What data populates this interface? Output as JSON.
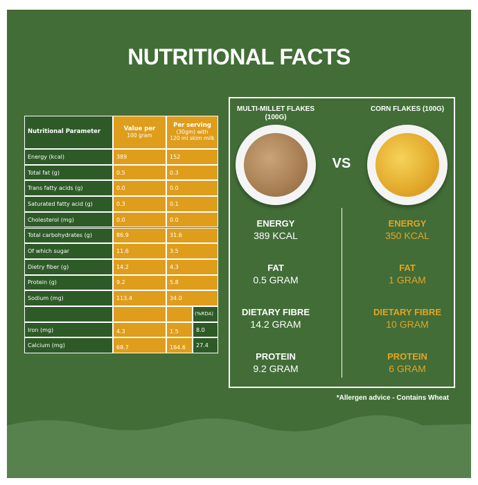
{
  "title": "NUTRITIONAL FACTS",
  "table": {
    "headers": [
      {
        "title": "Nutritional Parameter"
      },
      {
        "title": "Value per",
        "sub": [
          "100 gram"
        ]
      },
      {
        "title": "Per serving",
        "sub": [
          "(30gm) with",
          "120 ml skim milk"
        ]
      }
    ],
    "rows": [
      [
        "Energy (kcal)",
        "389",
        "152"
      ],
      [
        "Total fat (g)",
        "0.5",
        "0.3"
      ],
      [
        "Trans fatty acids (g)",
        "0.0",
        "0.0"
      ],
      [
        "Saturated fatty acid (g)",
        "0.3",
        "0.1"
      ],
      [
        "Cholesterol (mg)",
        "0.0",
        "0.0"
      ],
      [
        "Total carbohydrates (g)",
        "86.9",
        "31.6"
      ],
      [
        "Of which sugar",
        "11.6",
        "3.5"
      ],
      [
        "Dietry fiber (g)",
        "14.2",
        "4.3"
      ],
      [
        "Protein (g)",
        "9.2",
        "5.8"
      ],
      [
        "Sodium (mg)",
        "113.4",
        "34.0"
      ]
    ],
    "rda_label": "(%RDA)",
    "rda_rows": [
      [
        "Iron (mg)",
        "4.3",
        "1.5",
        "8.0"
      ],
      [
        "Calcium (mg)",
        "68.7",
        "164.6",
        "27.4"
      ]
    ]
  },
  "comparison": {
    "vs": "VS",
    "products": [
      {
        "name": "MULTI-MILLET FLAKES (100G)",
        "stats": [
          {
            "label": "ENERGY",
            "value": "389 KCAL"
          },
          {
            "label": "FAT",
            "value": "0.5 GRAM"
          },
          {
            "label": "DIETARY FIBRE",
            "value": "14.2 GRAM"
          },
          {
            "label": "PROTEIN",
            "value": "9.2 GRAM"
          }
        ]
      },
      {
        "name": "CORN FLAKES (100G)",
        "stats": [
          {
            "label": "ENERGY",
            "value": "350 KCAL"
          },
          {
            "label": "FAT",
            "value": "1 GRAM"
          },
          {
            "label": "DIETARY FIBRE",
            "value": "10 GRAM"
          },
          {
            "label": "PROTEIN",
            "value": "6 GRAM"
          }
        ]
      }
    ]
  },
  "allergen_note": "*Allergen advice - Contains Wheat"
}
